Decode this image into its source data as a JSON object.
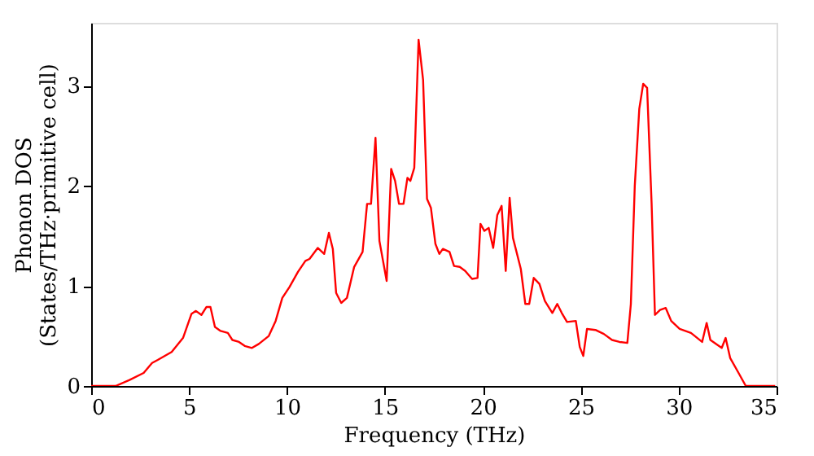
{
  "chart_data": {
    "type": "line",
    "xlabel": "Frequency (THz)",
    "ylabel": "Phonon DOS\n(States/THz·primitive cell)",
    "xlim": [
      0,
      35
    ],
    "ylim": [
      0,
      3.63
    ],
    "xticks": [
      0,
      5,
      10,
      15,
      20,
      25,
      30,
      35
    ],
    "yticks": [
      0,
      1,
      2,
      3
    ],
    "grid": false,
    "legend": false,
    "series": [
      {
        "color": "#ff0000",
        "x": [
          0,
          1.25,
          1.96,
          2.68,
          3.11,
          3.4,
          4.11,
          4.69,
          5.12,
          5.35,
          5.63,
          5.89,
          6.09,
          6.32,
          6.61,
          6.98,
          7.21,
          7.55,
          7.84,
          8.21,
          8.56,
          9.07,
          9.42,
          9.76,
          10.13,
          10.56,
          10.94,
          11.15,
          11.57,
          11.9,
          12.14,
          12.34,
          12.51,
          12.77,
          13.06,
          13.43,
          13.86,
          14.09,
          14.29,
          14.52,
          14.72,
          15.09,
          15.32,
          15.52,
          15.72,
          15.95,
          16.15,
          16.3,
          16.5,
          16.72,
          16.95,
          17.15,
          17.35,
          17.58,
          17.78,
          17.96,
          18.3,
          18.53,
          18.82,
          19.1,
          19.45,
          19.73,
          19.88,
          20.08,
          20.3,
          20.53,
          20.74,
          20.96,
          21.17,
          21.37,
          21.54,
          21.94,
          22.17,
          22.37,
          22.6,
          22.89,
          23.17,
          23.55,
          23.8,
          24.03,
          24.3,
          24.75,
          24.95,
          25.13,
          25.32,
          25.75,
          26.18,
          26.6,
          26.98,
          27.38,
          27.56,
          27.76,
          27.99,
          28.19,
          28.39,
          28.62,
          28.79,
          29.05,
          29.34,
          29.62,
          30.05,
          30.63,
          31.2,
          31.43,
          31.62,
          32.2,
          32.4,
          32.63,
          33.06,
          33.43,
          34.93
        ],
        "values": [
          0,
          0,
          0.06,
          0.13,
          0.23,
          0.26,
          0.34,
          0.48,
          0.72,
          0.75,
          0.71,
          0.79,
          0.79,
          0.59,
          0.55,
          0.53,
          0.46,
          0.44,
          0.4,
          0.38,
          0.42,
          0.5,
          0.65,
          0.88,
          0.99,
          1.14,
          1.25,
          1.27,
          1.38,
          1.32,
          1.53,
          1.37,
          0.93,
          0.83,
          0.88,
          1.19,
          1.34,
          1.82,
          1.82,
          2.48,
          1.45,
          1.05,
          2.17,
          2.05,
          1.82,
          1.82,
          2.08,
          2.05,
          2.18,
          3.46,
          3.06,
          1.87,
          1.78,
          1.42,
          1.32,
          1.37,
          1.34,
          1.2,
          1.19,
          1.15,
          1.07,
          1.08,
          1.62,
          1.55,
          1.58,
          1.38,
          1.71,
          1.8,
          1.15,
          1.88,
          1.48,
          1.17,
          0.82,
          0.82,
          1.08,
          1.02,
          0.85,
          0.73,
          0.82,
          0.73,
          0.64,
          0.65,
          0.39,
          0.3,
          0.57,
          0.56,
          0.52,
          0.46,
          0.44,
          0.43,
          0.82,
          2.0,
          2.77,
          3.02,
          2.98,
          1.82,
          0.71,
          0.76,
          0.78,
          0.65,
          0.57,
          0.53,
          0.44,
          0.63,
          0.46,
          0.38,
          0.48,
          0.28,
          0.13,
          0,
          0
        ]
      }
    ]
  }
}
